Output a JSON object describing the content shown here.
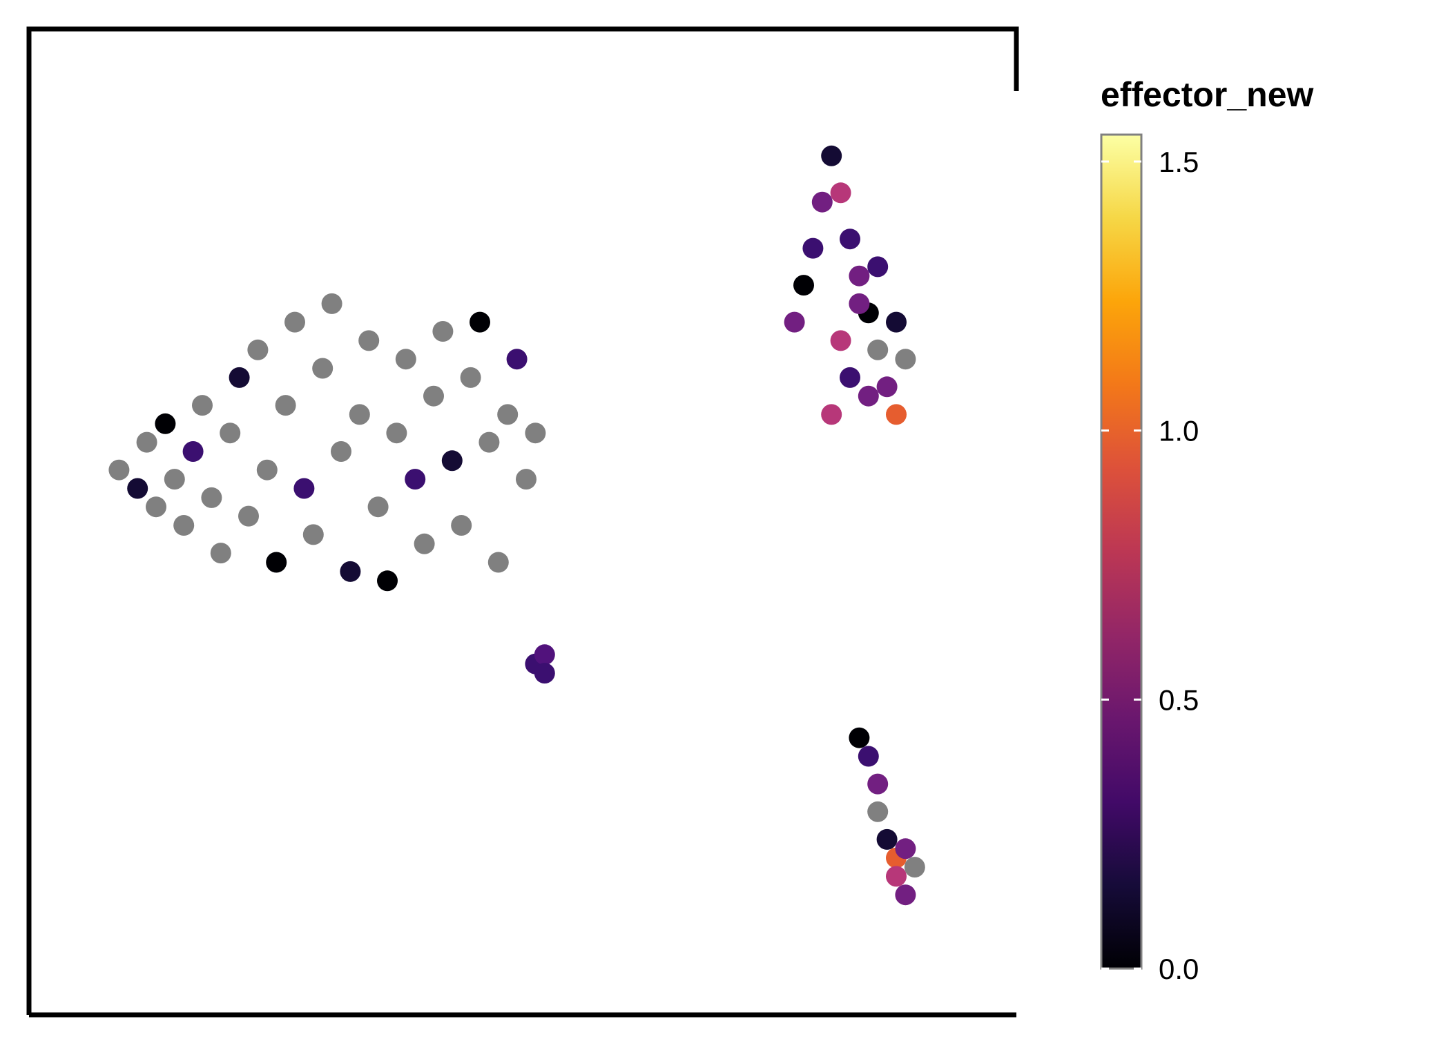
{
  "chart_data": {
    "type": "scatter",
    "title": "",
    "xlabel": "",
    "ylabel": "",
    "grid": false,
    "legend_position": "right",
    "colorbar": {
      "title": "effector_new",
      "colormap": "inferno",
      "min": 0.0,
      "max": 1.55,
      "ticks": [
        0.0,
        0.5,
        1.0,
        1.5
      ],
      "tick_labels": [
        "0.0",
        "0.5",
        "1.0",
        "1.5"
      ],
      "na_color": "#808080"
    },
    "series": [
      {
        "cluster": "large-left",
        "points": [
          [
            0.06,
            0.56
          ],
          [
            0.08,
            0.54
          ],
          [
            0.09,
            0.59
          ],
          [
            0.1,
            0.52
          ],
          [
            0.11,
            0.61
          ],
          [
            0.12,
            0.55
          ],
          [
            0.13,
            0.5
          ],
          [
            0.14,
            0.58
          ],
          [
            0.15,
            0.63
          ],
          [
            0.16,
            0.53
          ],
          [
            0.17,
            0.47
          ],
          [
            0.18,
            0.6
          ],
          [
            0.19,
            0.66
          ],
          [
            0.2,
            0.51
          ],
          [
            0.21,
            0.69
          ],
          [
            0.22,
            0.56
          ],
          [
            0.23,
            0.46
          ],
          [
            0.24,
            0.63
          ],
          [
            0.25,
            0.72
          ],
          [
            0.26,
            0.54
          ],
          [
            0.27,
            0.49
          ],
          [
            0.28,
            0.67
          ],
          [
            0.29,
            0.74
          ],
          [
            0.3,
            0.58
          ],
          [
            0.31,
            0.45
          ],
          [
            0.32,
            0.62
          ],
          [
            0.33,
            0.7
          ],
          [
            0.34,
            0.52
          ],
          [
            0.35,
            0.44
          ],
          [
            0.36,
            0.6
          ],
          [
            0.37,
            0.68
          ],
          [
            0.38,
            0.55
          ],
          [
            0.39,
            0.48
          ],
          [
            0.4,
            0.64
          ],
          [
            0.41,
            0.71
          ],
          [
            0.42,
            0.57
          ],
          [
            0.43,
            0.5
          ],
          [
            0.44,
            0.66
          ],
          [
            0.45,
            0.72
          ],
          [
            0.46,
            0.59
          ],
          [
            0.47,
            0.46
          ],
          [
            0.48,
            0.62
          ],
          [
            0.49,
            0.68
          ],
          [
            0.5,
            0.55
          ],
          [
            0.51,
            0.6
          ]
        ],
        "colors": [
          "#808080",
          "#140b34",
          "#808080",
          "#808080",
          "#000004",
          "#808080",
          "#808080",
          "#3b0f70",
          "#808080",
          "#808080",
          "#808080",
          "#808080",
          "#140b34",
          "#808080",
          "#808080",
          "#808080",
          "#000004",
          "#808080",
          "#808080",
          "#3b0f70",
          "#808080",
          "#808080",
          "#808080",
          "#808080",
          "#140b34",
          "#808080",
          "#808080",
          "#808080",
          "#000004",
          "#808080",
          "#808080",
          "#3b0f70",
          "#808080",
          "#808080",
          "#808080",
          "#140b34",
          "#808080",
          "#808080",
          "#000004",
          "#808080",
          "#808080",
          "#808080",
          "#3b0f70",
          "#808080",
          "#808080"
        ]
      },
      {
        "cluster": "small-middle",
        "points": [
          [
            0.51,
            0.35
          ],
          [
            0.52,
            0.36
          ],
          [
            0.52,
            0.34
          ]
        ],
        "colors": [
          "#3b0f70",
          "#51127c",
          "#3b0f70"
        ]
      },
      {
        "cluster": "upper-right",
        "points": [
          [
            0.79,
            0.72
          ],
          [
            0.8,
            0.76
          ],
          [
            0.81,
            0.8
          ],
          [
            0.82,
            0.85
          ],
          [
            0.83,
            0.9
          ],
          [
            0.84,
            0.86
          ],
          [
            0.85,
            0.81
          ],
          [
            0.86,
            0.77
          ],
          [
            0.87,
            0.73
          ],
          [
            0.88,
            0.69
          ],
          [
            0.89,
            0.65
          ],
          [
            0.9,
            0.62
          ],
          [
            0.85,
            0.66
          ],
          [
            0.83,
            0.62
          ],
          [
            0.87,
            0.64
          ],
          [
            0.9,
            0.72
          ],
          [
            0.91,
            0.68
          ],
          [
            0.88,
            0.78
          ],
          [
            0.84,
            0.7
          ],
          [
            0.86,
            0.74
          ]
        ],
        "colors": [
          "#721f81",
          "#000004",
          "#3b0f70",
          "#721f81",
          "#140b34",
          "#b73779",
          "#3b0f70",
          "#721f81",
          "#000004",
          "#808080",
          "#721f81",
          "#e65d2f",
          "#3b0f70",
          "#b73779",
          "#721f81",
          "#140b34",
          "#808080",
          "#3b0f70",
          "#b73779",
          "#721f81"
        ]
      },
      {
        "cluster": "lower-right",
        "points": [
          [
            0.86,
            0.27
          ],
          [
            0.87,
            0.25
          ],
          [
            0.88,
            0.22
          ],
          [
            0.88,
            0.19
          ],
          [
            0.89,
            0.16
          ],
          [
            0.9,
            0.14
          ],
          [
            0.91,
            0.15
          ],
          [
            0.92,
            0.13
          ],
          [
            0.9,
            0.12
          ],
          [
            0.91,
            0.1
          ]
        ],
        "colors": [
          "#000004",
          "#3b0f70",
          "#721f81",
          "#808080",
          "#140b34",
          "#e65d2f",
          "#721f81",
          "#808080",
          "#b73779",
          "#721f81"
        ]
      }
    ]
  }
}
